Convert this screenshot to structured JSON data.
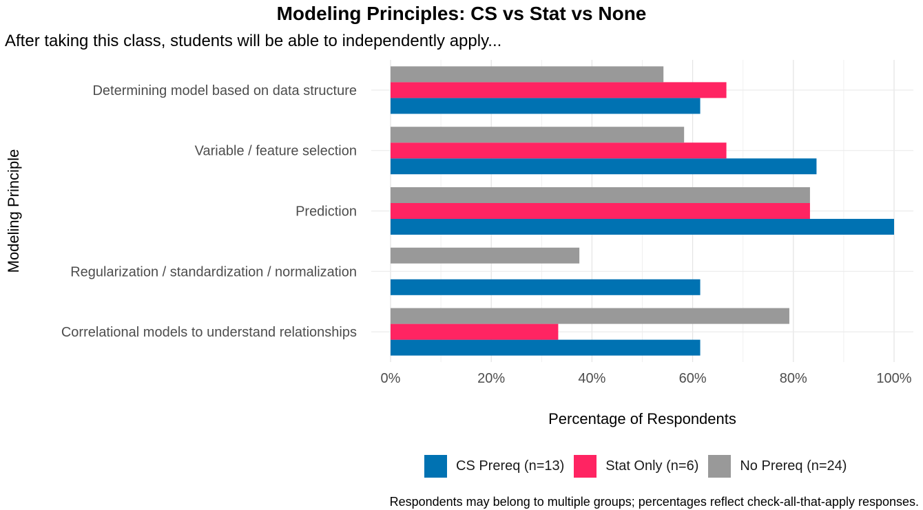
{
  "title": "Modeling Principles: CS vs Stat vs None",
  "subtitle": "After taking this class, students will be able to independently apply...",
  "caption": "Respondents may belong to multiple groups; percentages reflect check-all-that-apply responses.",
  "chart_data": {
    "type": "bar",
    "orientation": "horizontal",
    "title": "Modeling Principles: CS vs Stat vs None",
    "subtitle": "After taking this class, students will be able to independently apply...",
    "xlabel": "Percentage of Respondents",
    "ylabel": "Modeling Principle",
    "xlim": [
      0,
      100
    ],
    "x_ticks": [
      0,
      20,
      40,
      60,
      80,
      100
    ],
    "x_tick_labels": [
      "0%",
      "20%",
      "40%",
      "60%",
      "80%",
      "100%"
    ],
    "grid": true,
    "legend_position": "bottom",
    "categories": [
      "Determining model based on data structure",
      "Variable / feature selection",
      "Prediction",
      "Regularization / standardization / normalization",
      "Correlational models to understand relationships"
    ],
    "series": [
      {
        "name": "CS Prereq (n=13)",
        "color": "#0072B2",
        "values": [
          61.5,
          84.6,
          100,
          61.5,
          61.5
        ]
      },
      {
        "name": "Stat Only (n=6)",
        "color": "#FF2462",
        "values": [
          66.7,
          66.7,
          83.3,
          0,
          33.3
        ]
      },
      {
        "name": "No Prereq (n=24)",
        "color": "#999999",
        "values": [
          54.2,
          58.3,
          83.3,
          37.5,
          79.2
        ]
      }
    ]
  }
}
